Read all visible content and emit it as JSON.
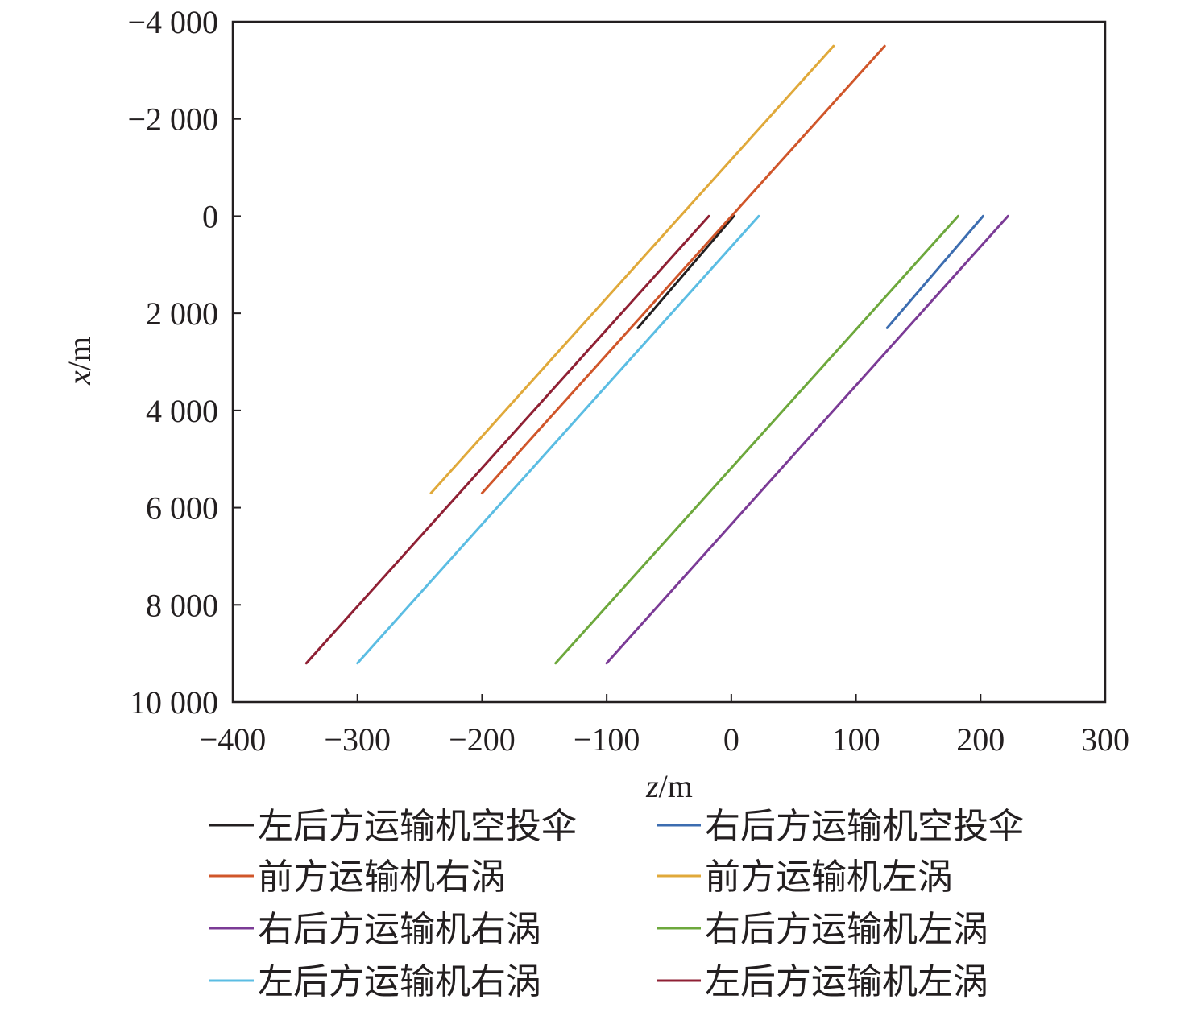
{
  "chart_data": {
    "type": "line",
    "title": "",
    "xlabel": "z/m",
    "ylabel": "x/m",
    "xlabel_var": "z",
    "xlabel_unit": "/m",
    "ylabel_var": "x",
    "ylabel_unit": "/m",
    "xlim": [
      -400,
      300
    ],
    "ylim": [
      -4000,
      10000
    ],
    "y_inverted": true,
    "grid": false,
    "legend_position": "bottom",
    "xticks": [
      -400,
      -300,
      -200,
      -100,
      0,
      100,
      200,
      300
    ],
    "xtick_labels": [
      "−400",
      "−300",
      "−200",
      "−100",
      "0",
      "100",
      "200",
      "300"
    ],
    "yticks": [
      -4000,
      -2000,
      0,
      2000,
      4000,
      6000,
      8000,
      10000
    ],
    "ytick_labels": [
      "−4 000",
      "−2 000",
      "0",
      "2 000",
      "4 000",
      "6 000",
      "8 000",
      "10 000"
    ],
    "series": [
      {
        "name": "左后方运输机空投伞",
        "color": "#231f20",
        "x": [
          -75,
          2
        ],
        "y": [
          2300,
          0
        ]
      },
      {
        "name": "右后方运输机空投伞",
        "color": "#3c6db0",
        "x": [
          125,
          202
        ],
        "y": [
          2300,
          0
        ]
      },
      {
        "name": "前方运输机右涡",
        "color": "#d0562a",
        "x": [
          -200,
          123
        ],
        "y": [
          5700,
          -3500
        ]
      },
      {
        "name": "前方运输机左涡",
        "color": "#e0a93a",
        "x": [
          -241,
          82
        ],
        "y": [
          5700,
          -3500
        ]
      },
      {
        "name": "右后方运输机右涡",
        "color": "#7b3b96",
        "x": [
          -100,
          222
        ],
        "y": [
          9200,
          0
        ]
      },
      {
        "name": "右后方运输机左涡",
        "color": "#6da83c",
        "x": [
          -141,
          182
        ],
        "y": [
          9200,
          0
        ]
      },
      {
        "name": "左后方运输机右涡",
        "color": "#5bbde3",
        "x": [
          -300,
          22
        ],
        "y": [
          9200,
          0
        ]
      },
      {
        "name": "左后方运输机左涡",
        "color": "#8f2034",
        "x": [
          -341,
          -18
        ],
        "y": [
          9200,
          0
        ]
      }
    ]
  }
}
